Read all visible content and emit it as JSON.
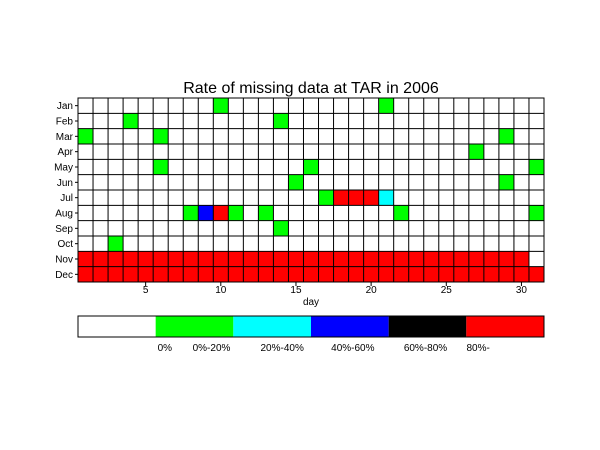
{
  "chart_data": {
    "type": "heatmap",
    "title": "Rate of missing data at TAR in 2006",
    "xlabel": "day",
    "ylabel": "",
    "xlim": [
      1,
      31
    ],
    "x_ticks": [
      5,
      10,
      15,
      20,
      25,
      30
    ],
    "rows": [
      "Jan",
      "Feb",
      "Mar",
      "Apr",
      "May",
      "Jun",
      "Jul",
      "Aug",
      "Sep",
      "Oct",
      "Nov",
      "Dec"
    ],
    "grid": true,
    "categories": [
      {
        "label": "0%",
        "color": "#ffffff"
      },
      {
        "label": "0%-20%",
        "color": "#00ff00"
      },
      {
        "label": "20%-40%",
        "color": "#00ffff"
      },
      {
        "label": "40%-60%",
        "color": "#0000ff"
      },
      {
        "label": "60%-80%",
        "color": "#000000"
      },
      {
        "label": "80%-",
        "color": "#ff0000"
      }
    ],
    "cells": [
      {
        "month": "Jan",
        "day": 10,
        "category": 1
      },
      {
        "month": "Jan",
        "day": 21,
        "category": 1
      },
      {
        "month": "Feb",
        "day": 4,
        "category": 1
      },
      {
        "month": "Feb",
        "day": 14,
        "category": 1
      },
      {
        "month": "Mar",
        "day": 1,
        "category": 1
      },
      {
        "month": "Mar",
        "day": 6,
        "category": 1
      },
      {
        "month": "Mar",
        "day": 29,
        "category": 1
      },
      {
        "month": "Apr",
        "day": 27,
        "category": 1
      },
      {
        "month": "May",
        "day": 6,
        "category": 1
      },
      {
        "month": "May",
        "day": 16,
        "category": 1
      },
      {
        "month": "May",
        "day": 31,
        "category": 1
      },
      {
        "month": "Jun",
        "day": 15,
        "category": 1
      },
      {
        "month": "Jun",
        "day": 29,
        "category": 1
      },
      {
        "month": "Jul",
        "day": 17,
        "category": 1
      },
      {
        "month": "Jul",
        "day": 18,
        "category": 5
      },
      {
        "month": "Jul",
        "day": 19,
        "category": 5
      },
      {
        "month": "Jul",
        "day": 20,
        "category": 5
      },
      {
        "month": "Jul",
        "day": 21,
        "category": 2
      },
      {
        "month": "Aug",
        "day": 8,
        "category": 1
      },
      {
        "month": "Aug",
        "day": 9,
        "category": 3
      },
      {
        "month": "Aug",
        "day": 10,
        "category": 5
      },
      {
        "month": "Aug",
        "day": 11,
        "category": 1
      },
      {
        "month": "Aug",
        "day": 13,
        "category": 1
      },
      {
        "month": "Aug",
        "day": 22,
        "category": 1
      },
      {
        "month": "Aug",
        "day": 31,
        "category": 1
      },
      {
        "month": "Sep",
        "day": 14,
        "category": 1
      },
      {
        "month": "Oct",
        "day": 3,
        "category": 1
      }
    ],
    "full_rows": [
      {
        "month": "Nov",
        "days": 30,
        "category": 5
      },
      {
        "month": "Dec",
        "days": 31,
        "category": 5
      }
    ]
  }
}
